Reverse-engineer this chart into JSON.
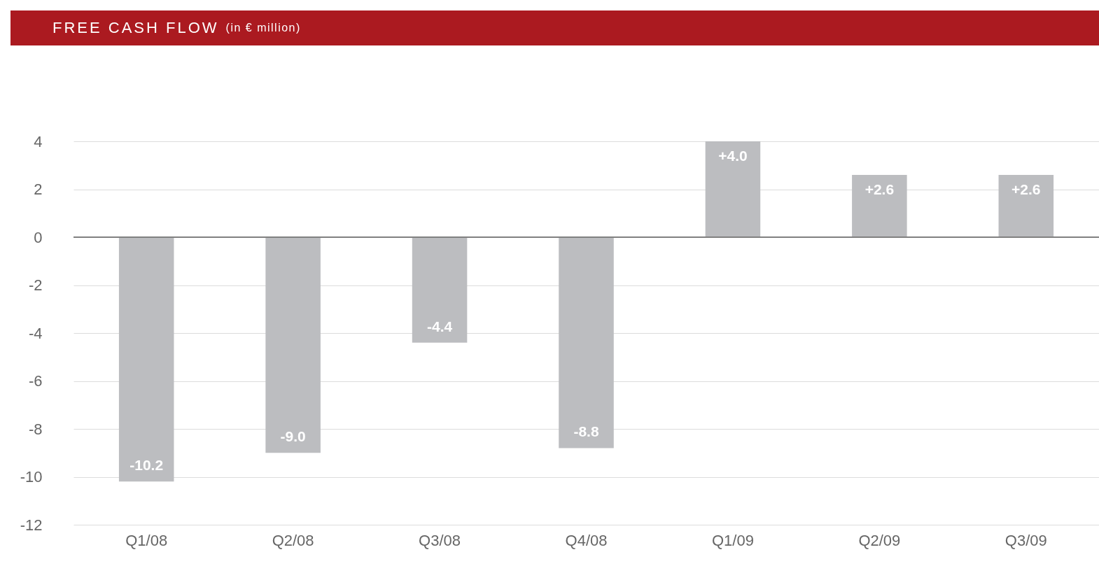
{
  "chart_data": {
    "type": "bar",
    "title": "FREE CASH FLOW",
    "subtitle": "(in € million)",
    "categories": [
      "Q1/08",
      "Q2/08",
      "Q3/08",
      "Q4/08",
      "Q1/09",
      "Q2/09",
      "Q3/09"
    ],
    "values": [
      -10.2,
      -9.0,
      -4.4,
      -8.8,
      4.0,
      2.6,
      2.6
    ],
    "value_labels": [
      "-10.2",
      "-9.0",
      "-4.4",
      "-8.8",
      "+4.0",
      "+2.6",
      "+2.6"
    ],
    "color": "#bcbdc0",
    "ylim": [
      -12,
      4
    ],
    "yticks": [
      -12,
      -10,
      -8,
      -6,
      -4,
      -2,
      0,
      2,
      4
    ],
    "grid": "y",
    "ref_lines": [
      {
        "axis": "y",
        "value": 0,
        "color": "#808080"
      }
    ]
  }
}
